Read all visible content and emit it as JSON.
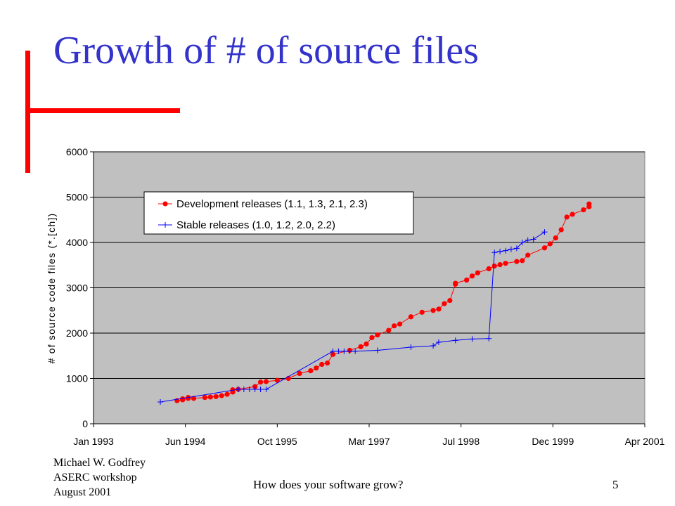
{
  "slide": {
    "title": "Growth of # of source files",
    "footer_author": [
      "Michael W. Godfrey",
      "ASERC workshop",
      "August 2001"
    ],
    "footer_center": "How does your software grow?",
    "page_number": "5",
    "accent_color": "#ff0000",
    "title_color": "#3333cc"
  },
  "chart_data": {
    "type": "line",
    "title": "",
    "xlabel": "",
    "ylabel": "# of source code files (*.[ch])",
    "x_ticks": [
      "Jan 1993",
      "Jun 1994",
      "Oct 1995",
      "Mar 1997",
      "Jul 1998",
      "Dec 1999",
      "Apr 2001"
    ],
    "xlim": [
      "1993-01",
      "2001-04"
    ],
    "ylim": [
      0,
      6000
    ],
    "y_ticks": [
      0,
      1000,
      2000,
      3000,
      4000,
      5000,
      6000
    ],
    "grid": true,
    "plot_background": "#c0c0c0",
    "legend_position": "top-left",
    "series": [
      {
        "name": "Development releases (1.1, 1.3, 2.1, 2.3)",
        "color": "#ff0000",
        "marker": "circle",
        "points": [
          [
            "1994-04",
            510
          ],
          [
            "1994-05",
            530
          ],
          [
            "1994-05",
            530
          ],
          [
            "1994-05",
            550
          ],
          [
            "1994-06",
            560
          ],
          [
            "1994-06",
            580
          ],
          [
            "1994-07",
            560
          ],
          [
            "1994-09",
            580
          ],
          [
            "1994-10",
            590
          ],
          [
            "1994-11",
            600
          ],
          [
            "1994-12",
            620
          ],
          [
            "1995-01",
            650
          ],
          [
            "1995-02",
            700
          ],
          [
            "1995-02",
            750
          ],
          [
            "1995-03",
            760
          ],
          [
            "1995-06",
            820
          ],
          [
            "1995-07",
            920
          ],
          [
            "1995-08",
            930
          ],
          [
            "1995-10",
            960
          ],
          [
            "1995-12",
            1000
          ],
          [
            "1996-02",
            1110
          ],
          [
            "1996-04",
            1170
          ],
          [
            "1996-05",
            1230
          ],
          [
            "1996-06",
            1310
          ],
          [
            "1996-07",
            1340
          ],
          [
            "1996-08",
            1530
          ],
          [
            "1996-11",
            1620
          ],
          [
            "1997-01",
            1700
          ],
          [
            "1997-02",
            1760
          ],
          [
            "1997-03",
            1900
          ],
          [
            "1997-04",
            1960
          ],
          [
            "1997-06",
            2060
          ],
          [
            "1997-07",
            2160
          ],
          [
            "1997-08",
            2200
          ],
          [
            "1997-10",
            2360
          ],
          [
            "1997-12",
            2460
          ],
          [
            "1998-02",
            2500
          ],
          [
            "1998-03",
            2530
          ],
          [
            "1998-04",
            2650
          ],
          [
            "1998-05",
            2720
          ],
          [
            "1998-06",
            3080
          ],
          [
            "1998-06",
            3100
          ],
          [
            "1998-08",
            3170
          ],
          [
            "1998-09",
            3260
          ],
          [
            "1998-10",
            3330
          ],
          [
            "1998-12",
            3420
          ],
          [
            "1999-01",
            3480
          ],
          [
            "1999-02",
            3510
          ],
          [
            "1999-03",
            3540
          ],
          [
            "1999-05",
            3580
          ],
          [
            "1999-06",
            3600
          ],
          [
            "1999-07",
            3720
          ],
          [
            "1999-10",
            3880
          ],
          [
            "1999-11",
            3970
          ],
          [
            "1999-12",
            4100
          ],
          [
            "2000-01",
            4280
          ],
          [
            "2000-02",
            4560
          ],
          [
            "2000-03",
            4620
          ],
          [
            "2000-05",
            4720
          ],
          [
            "2000-06",
            4790
          ],
          [
            "2000-06",
            4850
          ]
        ]
      },
      {
        "name": "Stable releases (1.0, 1.2, 2.0, 2.2)",
        "color": "#0000ff",
        "marker": "plus",
        "points": [
          [
            "1994-01",
            480
          ],
          [
            "1995-03",
            760
          ],
          [
            "1995-03",
            760
          ],
          [
            "1995-04",
            760
          ],
          [
            "1995-05",
            760
          ],
          [
            "1995-06",
            760
          ],
          [
            "1995-07",
            760
          ],
          [
            "1995-08",
            760
          ],
          [
            "1996-08",
            1600
          ],
          [
            "1996-09",
            1600
          ],
          [
            "1996-10",
            1600
          ],
          [
            "1996-11",
            1600
          ],
          [
            "1996-12",
            1600
          ],
          [
            "1997-04",
            1620
          ],
          [
            "1997-10",
            1690
          ],
          [
            "1998-02",
            1720
          ],
          [
            "1998-03",
            1800
          ],
          [
            "1998-06",
            1840
          ],
          [
            "1998-09",
            1870
          ],
          [
            "1998-12",
            1880
          ],
          [
            "1999-01",
            3780
          ],
          [
            "1999-02",
            3800
          ],
          [
            "1999-03",
            3820
          ],
          [
            "1999-04",
            3850
          ],
          [
            "1999-05",
            3870
          ],
          [
            "1999-06",
            4000
          ],
          [
            "1999-07",
            4050
          ],
          [
            "1999-08",
            4070
          ],
          [
            "1999-10",
            4230
          ]
        ]
      }
    ]
  }
}
